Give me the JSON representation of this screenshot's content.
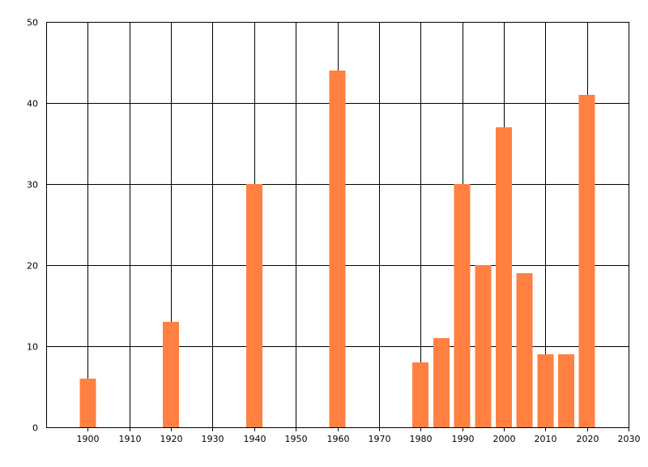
{
  "colors": {
    "bar": "#ff8040",
    "grid": "#000000",
    "background": "#ffffff"
  },
  "chart_data": {
    "type": "bar",
    "title": "",
    "xlabel": "",
    "ylabel": "",
    "xlim": [
      1890,
      2030
    ],
    "ylim": [
      0,
      50
    ],
    "x_ticks": [
      1900,
      1910,
      1920,
      1930,
      1940,
      1950,
      1960,
      1970,
      1980,
      1990,
      2000,
      2010,
      2020,
      2030
    ],
    "y_ticks": [
      0,
      10,
      20,
      30,
      40,
      50
    ],
    "grid": true,
    "legend": "none",
    "x": [
      1900,
      1920,
      1940,
      1960,
      1980,
      1985,
      1990,
      1995,
      2000,
      2005,
      2010,
      2015,
      2020
    ],
    "values": [
      6,
      13,
      30,
      44,
      8,
      11,
      30,
      20,
      37,
      19,
      9,
      9,
      41
    ]
  }
}
